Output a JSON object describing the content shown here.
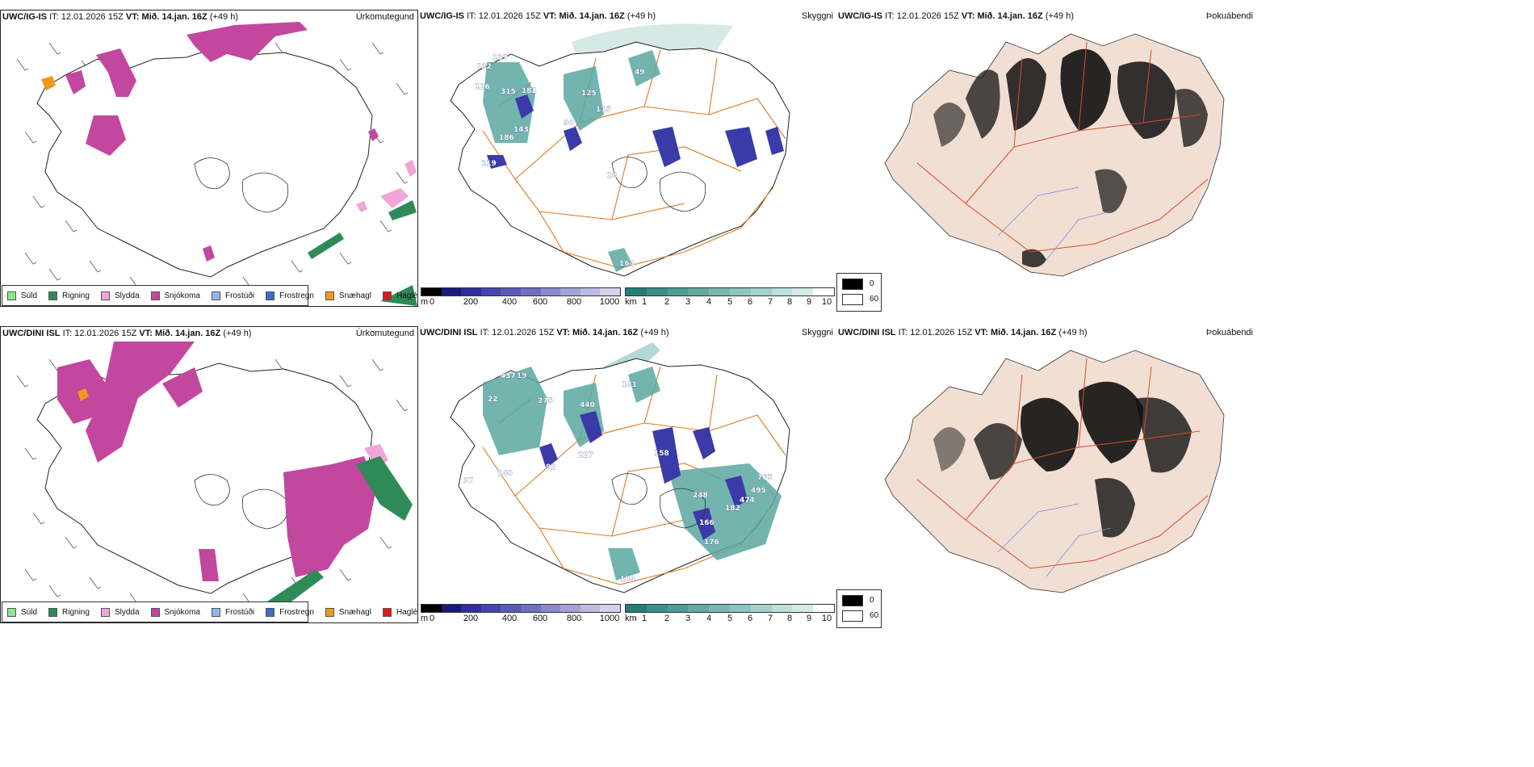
{
  "rows": [
    {
      "model": "UWC/IG-IS",
      "init_label": "IT:",
      "init_value": "12.01.2026 15Z",
      "valid_label": "VT:",
      "valid_value": "Mið. 14.jan. 16Z",
      "lead": "(+49 h)",
      "hr_labels": [
        {
          "label": "139"
        },
        {
          "label": "132"
        },
        {
          "label": "126"
        },
        {
          "label": "315"
        },
        {
          "label": "182"
        },
        {
          "label": "143"
        },
        {
          "label": "186"
        },
        {
          "label": "119"
        },
        {
          "label": "90"
        },
        {
          "label": "125"
        },
        {
          "label": "115"
        },
        {
          "label": "28"
        },
        {
          "label": "49"
        },
        {
          "label": "164"
        }
      ]
    },
    {
      "model": "UWC/DINI ISL",
      "init_label": "IT:",
      "init_value": "12.01.2026 15Z",
      "valid_label": "VT:",
      "valid_value": "Mið. 14.jan. 16Z",
      "lead": "(+49 h)",
      "hr_labels": [
        {
          "label": "437"
        },
        {
          "label": "19"
        },
        {
          "label": "22"
        },
        {
          "label": "275"
        },
        {
          "label": "440"
        },
        {
          "label": "181"
        },
        {
          "label": "158"
        },
        {
          "label": "92"
        },
        {
          "label": "227"
        },
        {
          "label": "140"
        },
        {
          "label": "37"
        },
        {
          "label": "248"
        },
        {
          "label": "166"
        },
        {
          "label": "182"
        },
        {
          "label": "495"
        },
        {
          "label": "765"
        },
        {
          "label": "474"
        },
        {
          "label": "176"
        },
        {
          "label": "184"
        }
      ]
    }
  ],
  "panel_titles": {
    "precip": "Úrkomutegund",
    "visibility": "Skyggni",
    "fog": "Þokuábendi"
  },
  "precip_legend": [
    {
      "label": "Súld",
      "color": "#8ee68a"
    },
    {
      "label": "Rigning",
      "color": "#2e8b57"
    },
    {
      "label": "Slydda",
      "color": "#f0a6d8"
    },
    {
      "label": "Snjókoma",
      "color": "#c3479f"
    },
    {
      "label": "Frostúði",
      "color": "#8fb8ef"
    },
    {
      "label": "Frostregn",
      "color": "#3a6fc4"
    },
    {
      "label": "Snæhagl",
      "color": "#f09a1c"
    },
    {
      "label": "Haglél",
      "color": "#e01818"
    }
  ],
  "height_bar": {
    "unit": "m",
    "ticks": [
      "0",
      "200",
      "400",
      "600",
      "800",
      "1000"
    ],
    "colors": [
      "#000000",
      "#1a1a7a",
      "#2f2f9a",
      "#4545ae",
      "#5a5ab8",
      "#7070c2",
      "#8a8acc",
      "#a4a4d8",
      "#bcbce2",
      "#d2d2ec"
    ]
  },
  "vis_bar": {
    "unit": "km",
    "ticks": [
      "1",
      "2",
      "3",
      "4",
      "5",
      "6",
      "7",
      "8",
      "9",
      "10"
    ],
    "colors": [
      "#237e76",
      "#3a8f87",
      "#4e9c94",
      "#63aaa2",
      "#78b8b0",
      "#8ec6bf",
      "#a4d2cc",
      "#bcdfdb",
      "#d4ebe8",
      "#ffffff"
    ]
  },
  "fog_legend": {
    "high": "0",
    "low": "60"
  },
  "colors": {
    "snow": "#c3479f",
    "rain": "#2e8b57",
    "sleet": "#f0a6d8",
    "snowpellet": "#f09a1c",
    "road": "#e07820",
    "fog_land": "#f2dfd3",
    "fog_road": "#d9492c",
    "river": "#7a8ee8",
    "vis_fill": "#5aa8a0",
    "low_cloud_height": "#3a3aa8"
  }
}
